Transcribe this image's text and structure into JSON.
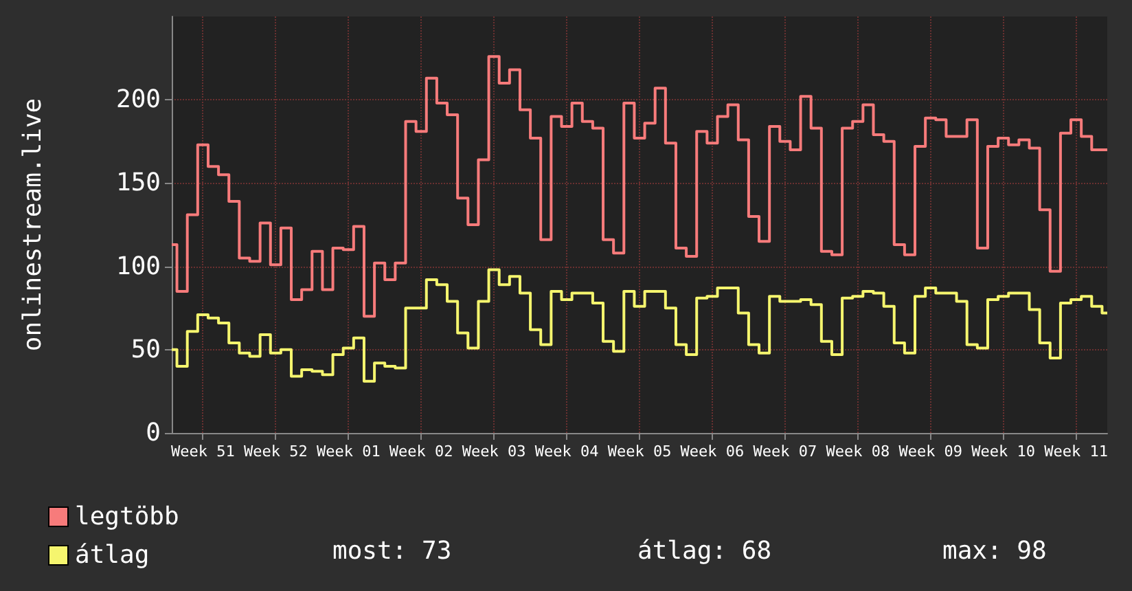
{
  "chart_data": {
    "type": "step",
    "ylabel": "onlinestream.live",
    "categories": [
      null,
      null,
      null,
      "Week 51",
      null,
      null,
      null,
      null,
      null,
      null,
      "Week 52",
      null,
      null,
      null,
      null,
      null,
      null,
      "Week 01",
      null,
      null,
      null,
      null,
      null,
      null,
      "Week 02",
      null,
      null,
      null,
      null,
      null,
      null,
      "Week 03",
      null,
      null,
      null,
      null,
      null,
      null,
      "Week 04",
      null,
      null,
      null,
      null,
      null,
      null,
      "Week 05",
      null,
      null,
      null,
      null,
      null,
      null,
      "Week 06",
      null,
      null,
      null,
      null,
      null,
      null,
      "Week 07",
      null,
      null,
      null,
      null,
      null,
      null,
      "Week 08",
      null,
      null,
      null,
      null,
      null,
      null,
      "Week 09",
      null,
      null,
      null,
      null,
      null,
      null,
      "Week 10",
      null,
      null,
      null,
      null,
      null,
      null,
      "Week 11",
      null,
      null,
      null
    ],
    "series": [
      {
        "name": "legtöbb",
        "color": "#f77b7b",
        "values": [
          113,
          85,
          131,
          173,
          160,
          155,
          139,
          105,
          103,
          126,
          101,
          123,
          80,
          86,
          109,
          86,
          111,
          110,
          124,
          70,
          102,
          92,
          102,
          187,
          181,
          213,
          198,
          191,
          141,
          125,
          164,
          226,
          210,
          218,
          194,
          177,
          116,
          190,
          184,
          198,
          187,
          183,
          116,
          108,
          198,
          177,
          186,
          207,
          174,
          111,
          106,
          181,
          174,
          190,
          197,
          176,
          130,
          115,
          184,
          175,
          170,
          202,
          183,
          109,
          107,
          183,
          187,
          197,
          179,
          175,
          113,
          107,
          172,
          189,
          188,
          178,
          178,
          188,
          111,
          172,
          177,
          173,
          176,
          171,
          134,
          97,
          180,
          188,
          178,
          170,
          170
        ]
      },
      {
        "name": "átlag",
        "color": "#f5f56e",
        "values": [
          50,
          40,
          61,
          71,
          69,
          66,
          54,
          48,
          46,
          59,
          48,
          50,
          34,
          38,
          37,
          35,
          47,
          51,
          57,
          31,
          42,
          40,
          39,
          75,
          75,
          92,
          89,
          79,
          60,
          51,
          79,
          98,
          89,
          94,
          84,
          62,
          53,
          85,
          80,
          84,
          84,
          78,
          55,
          49,
          85,
          76,
          85,
          85,
          75,
          53,
          47,
          81,
          82,
          87,
          87,
          72,
          53,
          48,
          82,
          79,
          79,
          80,
          77,
          55,
          47,
          81,
          82,
          85,
          84,
          76,
          54,
          48,
          82,
          87,
          84,
          84,
          79,
          53,
          51,
          80,
          82,
          84,
          84,
          74,
          54,
          45,
          78,
          80,
          82,
          76,
          72
        ]
      }
    ],
    "ylim": [
      0,
      250
    ],
    "yticks": [
      0,
      50,
      100,
      150,
      200
    ],
    "grid": true,
    "legend": "bottom left",
    "marker": "none",
    "line_style": "solid",
    "annotations": [
      "most: 73",
      "átlag: 68",
      "max: 98"
    ]
  }
}
